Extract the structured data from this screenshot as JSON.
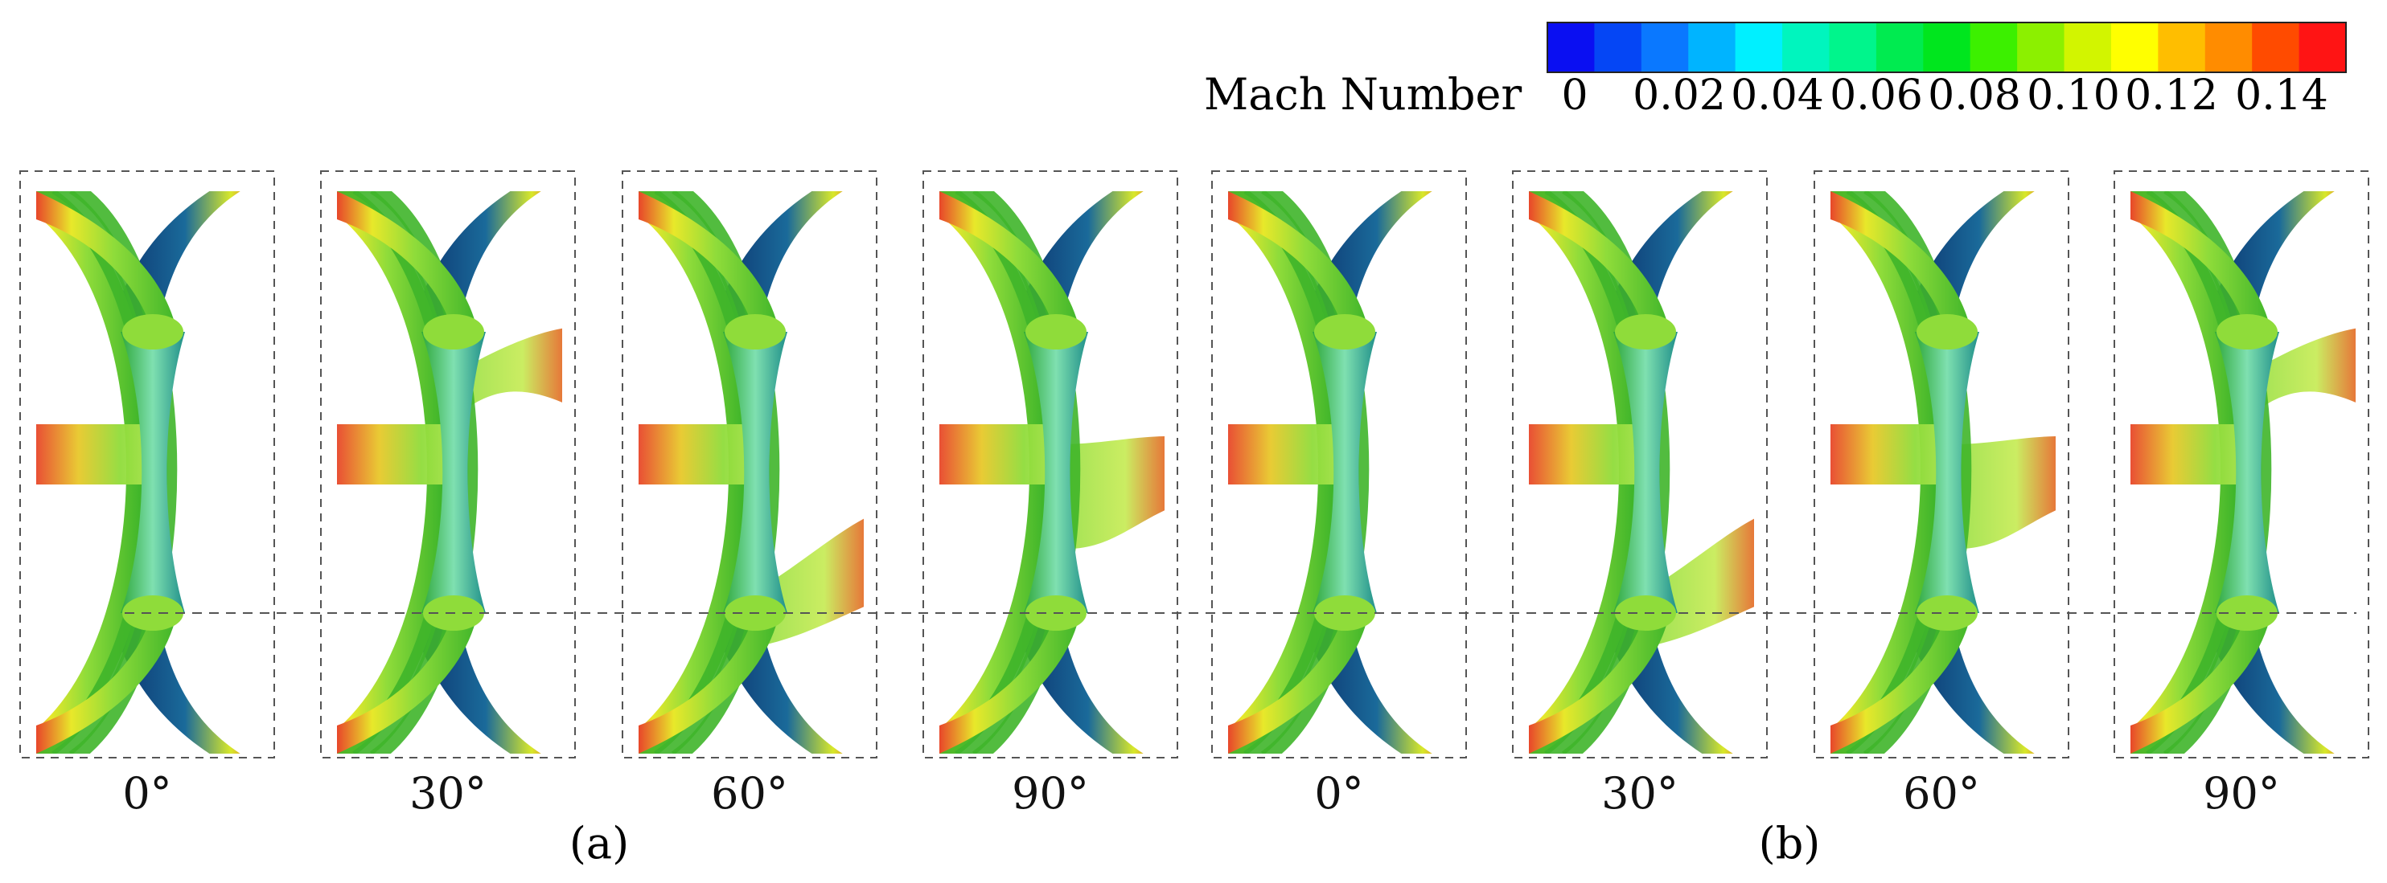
{
  "colorbar": {
    "title": "Mach Number",
    "tick_labels": [
      "0",
      "0.02",
      "0.04",
      "0.06",
      "0.08",
      "0.10",
      "0.12",
      "0.14"
    ],
    "colors": [
      "#0a0ff2",
      "#0546f5",
      "#0a78ff",
      "#00b4ff",
      "#00f0ff",
      "#00f5be",
      "#00f58c",
      "#00eb50",
      "#00e61e",
      "#3cf000",
      "#8cf000",
      "#d2f500",
      "#ffff00",
      "#ffbe00",
      "#ff8c00",
      "#ff4b00",
      "#ff1414"
    ]
  },
  "panels": [
    {
      "group": "a",
      "angle_label": "0°",
      "wake": "none"
    },
    {
      "group": "a",
      "angle_label": "30°",
      "wake": "upper"
    },
    {
      "group": "a",
      "angle_label": "60°",
      "wake": "lower"
    },
    {
      "group": "a",
      "angle_label": "90°",
      "wake": "middle"
    },
    {
      "group": "b",
      "angle_label": "0°",
      "wake": "none"
    },
    {
      "group": "b",
      "angle_label": "30°",
      "wake": "lower"
    },
    {
      "group": "b",
      "angle_label": "60°",
      "wake": "middle"
    },
    {
      "group": "b",
      "angle_label": "90°",
      "wake": "upper"
    }
  ],
  "group_labels": {
    "a": "(a)",
    "b": "(b)"
  },
  "surface_colors": {
    "hull_green": "#3fb52a",
    "hull_light": "#8fdc3a",
    "deep_blue": "#0b2f6b",
    "teal": "#1f8f8a",
    "hot_red": "#e8462a",
    "yellow": "#e8e82a"
  }
}
